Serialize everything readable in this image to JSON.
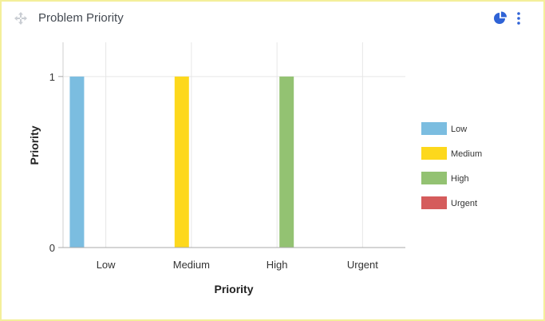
{
  "widget": {
    "title": "Problem Priority",
    "move_icon": "move-arrows-icon",
    "chart_type_icon": "pie-chart-icon",
    "menu_icon": "vertical-dots-menu-icon",
    "accent_color": "#2f63d6"
  },
  "chart_data": {
    "type": "bar",
    "categories": [
      "Low",
      "Medium",
      "High",
      "Urgent"
    ],
    "series": [
      {
        "name": "Low",
        "color": "#7bbde0",
        "values": [
          1,
          0,
          0,
          0
        ]
      },
      {
        "name": "Medium",
        "color": "#fdd81c",
        "values": [
          0,
          1,
          0,
          0
        ]
      },
      {
        "name": "High",
        "color": "#93c272",
        "values": [
          0,
          0,
          1,
          0
        ]
      },
      {
        "name": "Urgent",
        "color": "#d55c5c",
        "values": [
          0,
          0,
          0,
          0
        ]
      }
    ],
    "xlabel": "Priority",
    "ylabel": "Priority",
    "ylim": [
      0,
      1.2
    ],
    "yticks": [
      0,
      1
    ],
    "grid": true,
    "legend_position": "right"
  }
}
